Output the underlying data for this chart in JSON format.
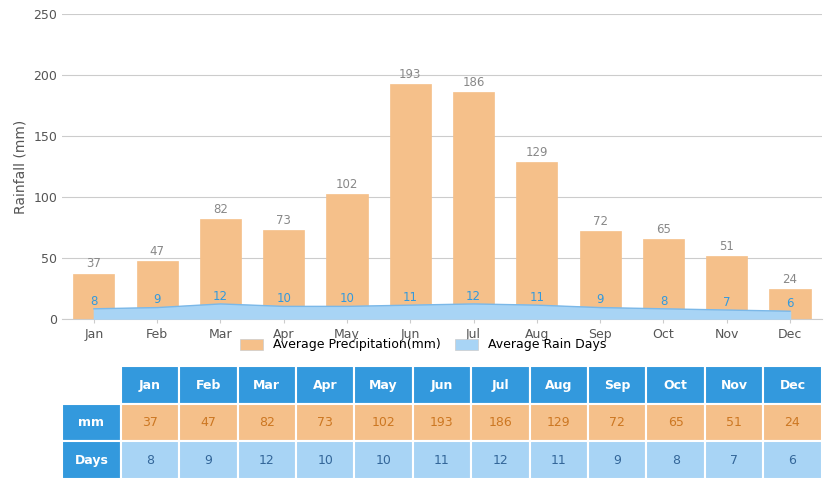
{
  "months": [
    "Jan",
    "Feb",
    "Mar",
    "Apr",
    "May",
    "Jun",
    "Jul",
    "Aug",
    "Sep",
    "Oct",
    "Nov",
    "Dec"
  ],
  "precipitation": [
    37,
    47,
    82,
    73,
    102,
    193,
    186,
    129,
    72,
    65,
    51,
    24
  ],
  "rain_days": [
    8,
    9,
    12,
    10,
    10,
    11,
    12,
    11,
    9,
    8,
    7,
    6
  ],
  "bar_color": "#F5C08A",
  "area_color": "#A8D4F5",
  "area_edge_color": "#7BB8E8",
  "ylabel": "Rainfall (mm)",
  "ylim": [
    0,
    250
  ],
  "yticks": [
    0,
    50,
    100,
    150,
    200,
    250
  ],
  "legend_precip": "Average Precipitation(mm)",
  "legend_days": "Average Rain Days",
  "table_header_color": "#3399DD",
  "table_mm_label_color": "#3399DD",
  "table_days_label_color": "#3399DD",
  "table_mm_data_color": "#F5C08A",
  "table_days_data_color": "#A8D4F5",
  "table_header_text_color": "#FFFFFF",
  "table_mm_text_color": "#CC7722",
  "table_days_text_color": "#336699",
  "background_color": "#FFFFFF",
  "grid_color": "#CCCCCC",
  "precip_label_color": "#888888",
  "days_label_color": "#3399DD",
  "ylabel_fontsize": 10,
  "label_fontsize": 8.5,
  "tick_fontsize": 9,
  "table_fontsize": 9
}
